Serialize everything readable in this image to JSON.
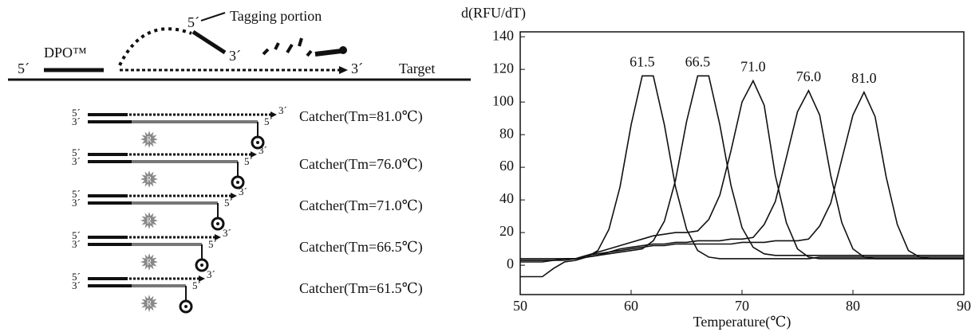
{
  "chart_data": {
    "type": "line",
    "y_label": "d(RFU/dT)",
    "x_label": "Temperature(℃)",
    "x": [
      50,
      51,
      52,
      53,
      54,
      55,
      56,
      57,
      58,
      59,
      60,
      61,
      62,
      63,
      64,
      65,
      66,
      67,
      68,
      69,
      70,
      71,
      72,
      73,
      74,
      75,
      76,
      77,
      78,
      79,
      80,
      81,
      82,
      83,
      84,
      85,
      86,
      87,
      88,
      89,
      90
    ],
    "series": [
      {
        "color": "#111111",
        "values": [
          -7,
          -7,
          -7,
          -2,
          2,
          3,
          5,
          9,
          22,
          48,
          86,
          116,
          116,
          86,
          48,
          22,
          9,
          5,
          4,
          4,
          4,
          4,
          4,
          4,
          4,
          4,
          4,
          5,
          5,
          5,
          5,
          5,
          5,
          5,
          5,
          5,
          5,
          5,
          5,
          5,
          5
        ]
      },
      {
        "color": "#111111",
        "values": [
          3,
          3,
          3,
          3,
          4,
          4,
          5,
          6,
          7,
          8,
          9,
          10,
          15,
          27,
          52,
          88,
          116,
          116,
          86,
          49,
          23,
          11,
          7,
          6,
          6,
          6,
          6,
          6,
          6,
          6,
          6,
          6,
          6,
          6,
          6,
          6,
          6,
          6,
          6,
          6,
          6
        ]
      },
      {
        "color": "#111111",
        "values": [
          2,
          2,
          2,
          3,
          3,
          4,
          6,
          8,
          10,
          12,
          14,
          16,
          18,
          19,
          20,
          20,
          21,
          28,
          43,
          70,
          100,
          113,
          98,
          55,
          26,
          10,
          5,
          4,
          4,
          4,
          4,
          4,
          4,
          4,
          4,
          4,
          4,
          4,
          4,
          4,
          4
        ]
      },
      {
        "color": "#111111",
        "values": [
          4,
          4,
          4,
          4,
          4,
          4,
          6,
          7,
          8,
          10,
          11,
          12,
          13,
          13,
          14,
          14,
          15,
          15,
          15,
          16,
          16,
          17,
          25,
          39,
          66,
          94,
          107,
          92,
          55,
          26,
          10,
          5,
          4,
          4,
          4,
          4,
          4,
          4,
          4,
          4,
          4
        ]
      },
      {
        "color": "#111111",
        "values": [
          3,
          3,
          3,
          3,
          4,
          4,
          5,
          6,
          8,
          9,
          10,
          11,
          12,
          12,
          13,
          13,
          13,
          13,
          13,
          13,
          14,
          14,
          14,
          15,
          15,
          15,
          16,
          24,
          38,
          65,
          92,
          106,
          91,
          54,
          25,
          9,
          5,
          4,
          4,
          4,
          4
        ]
      }
    ],
    "annotations": [
      "61.5",
      "66.5",
      "71.0",
      "76.0",
      "81.0"
    ],
    "xlim": [
      50,
      90
    ],
    "xticks": [
      50,
      60,
      70,
      80,
      90
    ],
    "ylim": [
      -18,
      143
    ],
    "yticks": [
      0,
      20,
      40,
      60,
      80,
      100,
      120,
      140
    ]
  },
  "diagram": {
    "dpo": "DPO™",
    "tagging": "Tagging portion",
    "target": "Target",
    "prime5": "5´",
    "prime3": "3´",
    "reporter": "R",
    "catchers": [
      "Catcher(Tm=81.0℃)",
      "Catcher(Tm=76.0℃)",
      "Catcher(Tm=71.0℃)",
      "Catcher(Tm=66.5℃)",
      "Catcher(Tm=61.5℃)"
    ]
  }
}
